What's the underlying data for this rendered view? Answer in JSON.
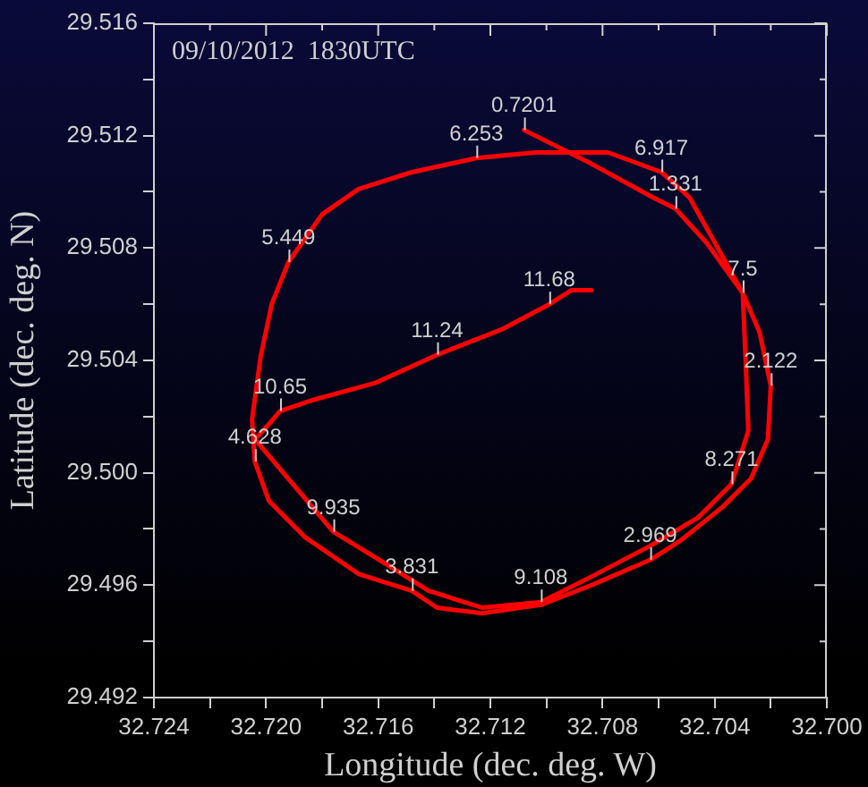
{
  "chart_data": {
    "type": "line",
    "title": "09/10/2012  1830UTC",
    "xlabel": "Longitude (dec. deg. W)",
    "ylabel": "Latitude (dec. deg. N)",
    "xlim": [
      32.724,
      32.7
    ],
    "ylim": [
      29.492,
      29.516
    ],
    "xticks": [
      32.724,
      {
        "value": 32.722,
        "label": null
      },
      {
        "value": 32.72,
        "label": "32.720"
      },
      {
        "value": 32.718,
        "label": null
      },
      32.716,
      {
        "value": 32.714,
        "label": null
      },
      32.712,
      {
        "value": 32.71,
        "label": null
      },
      32.708,
      {
        "value": 32.706,
        "label": null
      },
      32.704,
      {
        "value": 32.702,
        "label": null
      },
      {
        "value": 32.7,
        "label": "32.700"
      }
    ],
    "yticks": [
      29.492,
      {
        "value": 29.494,
        "label": null
      },
      29.496,
      {
        "value": 29.498,
        "label": null
      },
      {
        "value": 29.5,
        "label": "29.500"
      },
      {
        "value": 29.502,
        "label": null
      },
      29.504,
      {
        "value": 29.506,
        "label": null
      },
      29.508,
      {
        "value": 29.51,
        "label": null
      },
      29.512,
      {
        "value": 29.514,
        "label": null
      },
      29.516
    ],
    "grid": false,
    "legend": false,
    "marker": "none",
    "line_style": "solid",
    "x": [
      32.7108,
      32.7084,
      32.7062,
      32.7054,
      32.7043,
      32.703,
      32.7024,
      32.702,
      32.7021,
      32.7027,
      32.7037,
      32.7052,
      32.7063,
      32.7084,
      32.7102,
      32.7123,
      32.7139,
      32.7148,
      32.7167,
      32.7186,
      32.7199,
      32.7204,
      32.7205,
      32.7202,
      32.7198,
      32.7192,
      32.718,
      32.7167,
      32.7148,
      32.7125,
      32.7104,
      32.7078,
      32.7059,
      32.7049,
      32.704,
      32.703,
      32.7029,
      32.7028,
      32.7034,
      32.7046,
      32.7063,
      32.7084,
      32.7102,
      32.7123,
      32.7142,
      32.7158,
      32.7176,
      32.7193,
      32.7204,
      32.7201,
      32.7195,
      32.7183,
      32.7161,
      32.7139,
      32.7116,
      32.7099,
      32.7091,
      32.7084
    ],
    "series": [
      {
        "color": "#ff0000",
        "values": [
          29.5122,
          29.511,
          29.5098,
          29.5094,
          29.5082,
          29.5064,
          29.505,
          29.5031,
          29.5012,
          29.4998,
          29.4988,
          29.4976,
          29.4969,
          29.496,
          29.4953,
          29.495,
          29.4952,
          29.4958,
          29.4964,
          29.4977,
          29.499,
          29.5004,
          29.5019,
          29.5041,
          29.506,
          29.5075,
          29.5092,
          29.5101,
          29.5107,
          29.5112,
          29.5114,
          29.5114,
          29.5107,
          29.5098,
          29.5082,
          29.5064,
          29.5041,
          29.5015,
          29.4996,
          29.4984,
          29.4974,
          29.4963,
          29.4954,
          29.4952,
          29.4958,
          29.4968,
          29.4979,
          29.4999,
          29.5012,
          29.5015,
          29.5022,
          29.5026,
          29.5032,
          29.5042,
          29.5051,
          29.506,
          29.5065,
          29.5065
        ]
      }
    ],
    "annotations": [
      {
        "text": "0.7201",
        "x": 32.7108,
        "y": 29.5122
      },
      {
        "text": "1.331",
        "x": 32.7054,
        "y": 29.5094
      },
      {
        "text": "2.122",
        "x": 32.702,
        "y": 29.5031
      },
      {
        "text": "2.969",
        "x": 32.7063,
        "y": 29.4969
      },
      {
        "text": "3.831",
        "x": 32.7148,
        "y": 29.4958
      },
      {
        "text": "4.628",
        "x": 32.7204,
        "y": 29.5004
      },
      {
        "text": "5.449",
        "x": 32.7192,
        "y": 29.5075
      },
      {
        "text": "6.253",
        "x": 32.7125,
        "y": 29.5112
      },
      {
        "text": "6.917",
        "x": 32.7059,
        "y": 29.5107
      },
      {
        "text": "7.5",
        "x": 32.703,
        "y": 29.5064
      },
      {
        "text": "8.271",
        "x": 32.7034,
        "y": 29.4996
      },
      {
        "text": "9.108",
        "x": 32.7102,
        "y": 29.4954
      },
      {
        "text": "9.935",
        "x": 32.7176,
        "y": 29.4979
      },
      {
        "text": "10.65",
        "x": 32.7195,
        "y": 29.5022
      },
      {
        "text": "11.24",
        "x": 32.7139,
        "y": 29.5042
      },
      {
        "text": "11.68",
        "x": 32.7099,
        "y": 29.506
      }
    ]
  }
}
